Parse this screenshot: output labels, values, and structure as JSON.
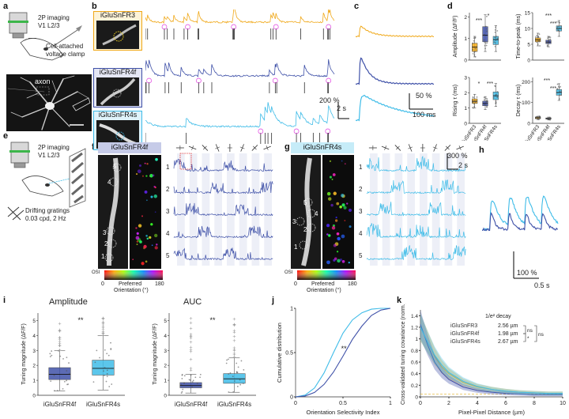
{
  "panels": [
    "a",
    "b",
    "c",
    "d",
    "e",
    "f",
    "g",
    "h",
    "i",
    "j",
    "k"
  ],
  "colors": {
    "fr3": "#f0a818",
    "fr4f": "#3f51a8",
    "fr4s": "#3fbce8",
    "spike": "#111111",
    "ring": "#e040e0"
  },
  "a": {
    "line1": "2P imaging",
    "line2": "V1 L2/3",
    "clamp1": "Cell-attached",
    "clamp2": "voltage clamp",
    "axon": "axon"
  },
  "b": {
    "labels": [
      "iGluSnFR3",
      "iGluSnFR4f",
      "iGluSnFR4s"
    ],
    "scale_y": "200 %",
    "scale_x": "2 s"
  },
  "c": {
    "scale_y": "50 %",
    "scale_x": "100 ms"
  },
  "d": {
    "ylabels": [
      "Amplitude (ΔF/F)",
      "Time-to-peak (ms)",
      "Rising τ (ms)",
      "Decay τ (ms)"
    ],
    "categories": [
      "iGluSnFR3",
      "iGluSnFR4f",
      "iGluSnFR4s"
    ],
    "amp_ticks": [
      "0",
      "1",
      "2"
    ],
    "ttp_ticks": [
      "0",
      "5",
      "10",
      "15"
    ],
    "rise_ticks": [
      "0",
      "1",
      "2",
      "3"
    ],
    "decay_ticks": [
      "0",
      "100",
      "200"
    ],
    "stars": [
      "***",
      "*",
      "***",
      "***",
      "*",
      "***",
      "***",
      "***"
    ]
  },
  "e": {
    "line1": "2P imaging",
    "line2": "V1 L2/3",
    "grat1": "Drifting gratings",
    "grat2": "0.03 cpd, 2 Hz"
  },
  "f": {
    "title": "iGluSnFR4f",
    "rows": [
      "1",
      "2",
      "3",
      "4",
      "5"
    ],
    "osi": "OSI",
    "osi0": "0",
    "osi1": "1",
    "cb0": "0",
    "cb1": "180",
    "cb_label1": "Preferred",
    "cb_label2": "Orientation (°)"
  },
  "g": {
    "title": "iGluSnFR4s",
    "rows": [
      "1",
      "2",
      "3",
      "4",
      "5"
    ],
    "scale_y": "300 %",
    "scale_x": "2 s",
    "osi": "OSI",
    "osi0": "0",
    "osi1": "1",
    "cb0": "0",
    "cb1": "180",
    "cb_label1": "Preferred",
    "cb_label2": "Orientation (°)"
  },
  "h": {
    "scale_y": "100 %",
    "scale_x": "0.5 s"
  },
  "i": {
    "amp_title": "Amplitude",
    "auc_title": "AUC",
    "ylabel": "Tuning magnitude (ΔF/F)",
    "categories": [
      "iGluSnFR4f",
      "iGluSnFR4s"
    ],
    "stars": "**",
    "amp_ticks": [
      "0",
      "1",
      "2",
      "3",
      "4",
      "5"
    ],
    "auc_ticks": [
      "0",
      "1",
      "2",
      "3",
      "4",
      "5"
    ]
  },
  "j": {
    "ylabel": "Cumulative distribution",
    "xlabel": "Orientation Selectivity Index",
    "yticks": [
      "0",
      "0.5",
      "1"
    ],
    "xticks": [
      "0",
      "0.5",
      "1"
    ],
    "stars": "**"
  },
  "k": {
    "ylabel": "Cross-validated tuning covariance (norm.)",
    "xlabel": "Pixel-Pixel Distance (µm)",
    "xticks": [
      "0",
      "2",
      "4",
      "6",
      "8",
      "10"
    ],
    "yticks": [
      "0",
      "0.2",
      "0.4",
      "0.6",
      "0.8",
      "1",
      "1.2",
      "1.4"
    ],
    "legend_title": "1/e² decay",
    "legend": [
      {
        "name": "iGluSnFR3",
        "value": "2.56 µm"
      },
      {
        "name": "iGluSnFR4f",
        "value": "1.98 µm"
      },
      {
        "name": "iGluSnFR4s",
        "value": "2.67 µm"
      }
    ],
    "sig": [
      "ns",
      "*",
      "ns"
    ]
  },
  "chart_data": [
    {
      "type": "box",
      "panel": "d",
      "ylabel": "Amplitude (ΔF/F)",
      "categories": [
        "iGluSnFR3",
        "iGluSnFR4f",
        "iGluSnFR4s"
      ],
      "ylim": [
        0,
        2.2
      ],
      "boxes": [
        {
          "q1": 0.4,
          "median": 0.6,
          "q3": 0.78,
          "lo": 0.15,
          "hi": 1.1
        },
        {
          "q1": 0.85,
          "median": 1.15,
          "q3": 1.55,
          "lo": 0.4,
          "hi": 2.1
        },
        {
          "q1": 0.72,
          "median": 0.95,
          "q3": 1.1,
          "lo": 0.4,
          "hi": 1.6
        }
      ]
    },
    {
      "type": "box",
      "panel": "d",
      "ylabel": "Time-to-peak (ms)",
      "categories": [
        "iGluSnFR3",
        "iGluSnFR4f",
        "iGluSnFR4s"
      ],
      "ylim": [
        0,
        15
      ],
      "boxes": [
        {
          "q1": 5.8,
          "median": 6.4,
          "q3": 7.0,
          "lo": 4.5,
          "hi": 8.5
        },
        {
          "q1": 5.2,
          "median": 5.7,
          "q3": 6.3,
          "lo": 4.2,
          "hi": 7.5
        },
        {
          "q1": 9.2,
          "median": 10.0,
          "q3": 10.8,
          "lo": 7.5,
          "hi": 12.5
        }
      ]
    },
    {
      "type": "box",
      "panel": "d",
      "ylabel": "Rising τ (ms)",
      "categories": [
        "iGluSnFR3",
        "iGluSnFR4f",
        "iGluSnFR4s"
      ],
      "ylim": [
        0,
        3
      ],
      "boxes": [
        {
          "q1": 1.3,
          "median": 1.45,
          "q3": 1.6,
          "lo": 1.0,
          "hi": 1.9
        },
        {
          "q1": 1.15,
          "median": 1.3,
          "q3": 1.45,
          "lo": 0.9,
          "hi": 1.75
        },
        {
          "q1": 1.55,
          "median": 1.8,
          "q3": 2.05,
          "lo": 1.1,
          "hi": 2.6
        }
      ]
    },
    {
      "type": "box",
      "panel": "d",
      "ylabel": "Decay τ (ms)",
      "categories": [
        "iGluSnFR3",
        "iGluSnFR4f",
        "iGluSnFR4s"
      ],
      "ylim": [
        0,
        220
      ],
      "boxes": [
        {
          "q1": 22,
          "median": 26,
          "q3": 30,
          "lo": 18,
          "hi": 34
        },
        {
          "q1": 20,
          "median": 23,
          "q3": 26,
          "lo": 16,
          "hi": 30
        },
        {
          "q1": 135,
          "median": 148,
          "q3": 162,
          "lo": 110,
          "hi": 190
        }
      ]
    },
    {
      "type": "box",
      "panel": "i",
      "title": "Amplitude",
      "ylabel": "Tuning magnitude (ΔF/F)",
      "categories": [
        "iGluSnFR4f",
        "iGluSnFR4s"
      ],
      "ylim": [
        0,
        5.5
      ],
      "boxes": [
        {
          "q1": 1.05,
          "median": 1.4,
          "q3": 1.85,
          "lo": 0.3,
          "hi": 3.0
        },
        {
          "q1": 1.35,
          "median": 1.8,
          "q3": 2.35,
          "lo": 0.35,
          "hi": 4.0
        }
      ]
    },
    {
      "type": "box",
      "panel": "i",
      "title": "AUC",
      "ylabel": "Tuning magnitude (ΔF/F)",
      "categories": [
        "iGluSnFR4f",
        "iGluSnFR4s"
      ],
      "ylim": [
        0,
        5.5
      ],
      "boxes": [
        {
          "q1": 0.5,
          "median": 0.65,
          "q3": 0.85,
          "lo": 0.15,
          "hi": 1.4
        },
        {
          "q1": 0.8,
          "median": 1.1,
          "q3": 1.45,
          "lo": 0.2,
          "hi": 2.5
        }
      ]
    },
    {
      "type": "line",
      "panel": "j",
      "xlabel": "Orientation Selectivity Index",
      "ylabel": "Cumulative distribution",
      "xlim": [
        0,
        1
      ],
      "ylim": [
        0,
        1
      ],
      "x": [
        0,
        0.1,
        0.2,
        0.3,
        0.4,
        0.5,
        0.6,
        0.7,
        0.8,
        0.9,
        1.0
      ],
      "series": [
        {
          "color": "#3fbce8",
          "values": [
            0,
            0.02,
            0.1,
            0.27,
            0.5,
            0.72,
            0.87,
            0.95,
            0.99,
            1,
            1
          ]
        },
        {
          "color": "#3f51a8",
          "values": [
            0,
            0.01,
            0.05,
            0.14,
            0.28,
            0.46,
            0.65,
            0.8,
            0.92,
            0.98,
            1
          ]
        }
      ]
    },
    {
      "type": "line",
      "panel": "k",
      "xlabel": "Pixel-Pixel Distance (µm)",
      "ylabel": "Cross-validated tuning covariance (norm.)",
      "xlim": [
        0,
        10
      ],
      "ylim": [
        0,
        1.5
      ],
      "x": [
        0,
        0.5,
        1,
        1.5,
        2,
        3,
        4,
        5,
        6,
        7,
        8,
        9,
        10
      ],
      "series": [
        {
          "name": "iGluSnFR3",
          "color": "#f0a818",
          "values": [
            1.2,
            0.95,
            0.7,
            0.52,
            0.4,
            0.25,
            0.17,
            0.13,
            0.1,
            0.08,
            0.07,
            0.06,
            0.06
          ]
        },
        {
          "name": "iGluSnFR4f",
          "color": "#3f51a8",
          "values": [
            1.25,
            0.9,
            0.6,
            0.42,
            0.3,
            0.17,
            0.11,
            0.08,
            0.06,
            0.05,
            0.04,
            0.04,
            0.04
          ]
        },
        {
          "name": "iGluSnFR4s",
          "color": "#3fbce8",
          "values": [
            1.2,
            0.95,
            0.72,
            0.55,
            0.42,
            0.27,
            0.18,
            0.13,
            0.1,
            0.08,
            0.07,
            0.06,
            0.06
          ]
        }
      ]
    }
  ]
}
